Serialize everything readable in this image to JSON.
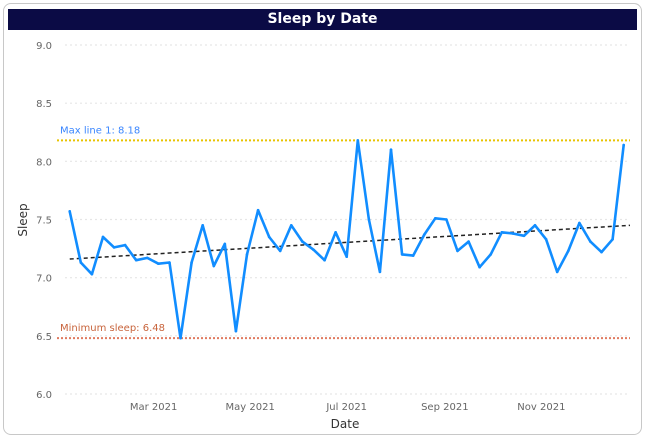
{
  "chart_data": {
    "type": "line",
    "title": "Sleep by Date",
    "xlabel": "Date",
    "ylabel": "Sleep",
    "ylim": [
      6.0,
      9.0
    ],
    "yticks": [
      6.0,
      6.5,
      7.0,
      7.5,
      8.0,
      8.5,
      9.0
    ],
    "ytick_labels": [
      "6.0",
      "6.5",
      "7.0",
      "7.5",
      "8.0",
      "8.5",
      "9.0"
    ],
    "xlim": [
      "2021-01-04",
      "2021-12-27"
    ],
    "xticks": [
      "2021-03-01",
      "2021-05-01",
      "2021-07-01",
      "2021-09-01",
      "2021-11-01"
    ],
    "xtick_labels": [
      "Mar 2021",
      "May 2021",
      "Jul 2021",
      "Sep 2021",
      "Nov 2021"
    ],
    "grid": true,
    "series": [
      {
        "color": "#118dff",
        "x": [
          "2021-01-07",
          "2021-01-14",
          "2021-01-21",
          "2021-01-28",
          "2021-02-04",
          "2021-02-11",
          "2021-02-18",
          "2021-02-25",
          "2021-03-04",
          "2021-03-11",
          "2021-03-18",
          "2021-03-25",
          "2021-04-01",
          "2021-04-08",
          "2021-04-15",
          "2021-04-22",
          "2021-04-29",
          "2021-05-06",
          "2021-05-13",
          "2021-05-20",
          "2021-05-27",
          "2021-06-03",
          "2021-06-10",
          "2021-06-17",
          "2021-06-24",
          "2021-07-01",
          "2021-07-08",
          "2021-07-15",
          "2021-07-22",
          "2021-07-29",
          "2021-08-05",
          "2021-08-12",
          "2021-08-19",
          "2021-08-26",
          "2021-09-02",
          "2021-09-09",
          "2021-09-16",
          "2021-09-23",
          "2021-09-30",
          "2021-10-07",
          "2021-10-14",
          "2021-10-21",
          "2021-10-28",
          "2021-11-04",
          "2021-11-11",
          "2021-11-18",
          "2021-11-25",
          "2021-12-02",
          "2021-12-09",
          "2021-12-16",
          "2021-12-23"
        ],
        "y": [
          7.57,
          7.13,
          7.03,
          7.35,
          7.26,
          7.28,
          7.15,
          7.17,
          7.12,
          7.13,
          6.48,
          7.13,
          7.45,
          7.1,
          7.29,
          6.54,
          7.2,
          7.58,
          7.35,
          7.23,
          7.45,
          7.31,
          7.24,
          7.15,
          7.39,
          7.18,
          8.18,
          7.5,
          7.05,
          8.1,
          7.2,
          7.19,
          7.37,
          7.51,
          7.5,
          7.23,
          7.31,
          7.09,
          7.2,
          7.39,
          7.38,
          7.36,
          7.45,
          7.33,
          7.05,
          7.23,
          7.47,
          7.31,
          7.22,
          7.33,
          8.14
        ]
      }
    ],
    "trend": {
      "type": "linear",
      "color": "#222222",
      "x": [
        "2021-01-07",
        "2021-12-27"
      ],
      "y": [
        7.16,
        7.45
      ]
    },
    "reference_lines": [
      {
        "label": "Max line 1: 8.18",
        "value": 8.18,
        "color": "#e8c400",
        "label_color": "#3a86ff"
      },
      {
        "label": "Minimum sleep: 6.48",
        "value": 6.48,
        "color": "#e07a5f",
        "label_color": "#c8643c"
      }
    ]
  }
}
